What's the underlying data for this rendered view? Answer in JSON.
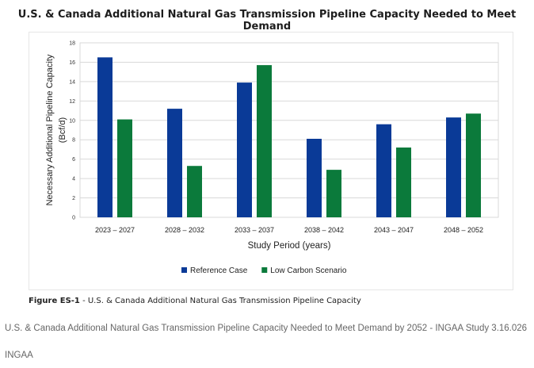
{
  "page": {
    "title": "U.S. & Canada Additional Natural Gas Transmission Pipeline Capacity Needed to Meet Demand",
    "figure_label": "Figure ES-1",
    "figure_caption": "U.S. & Canada Additional Natural Gas Transmission Pipeline Capacity",
    "source_description": "U.S. & Canada Additional Natural Gas Transmission Pipeline Capacity Needed to Meet Demand by 2052 - INGAA Study 3.16.026",
    "source_org": "INGAA"
  },
  "chart_data": {
    "type": "bar",
    "title": "U.S. & Canada Additional Natural Gas Transmission Pipeline Capacity Needed to Meet Demand",
    "xlabel": "Study Period (years)",
    "ylabel_line1": "Necessary Additional Pipeline Capacity",
    "ylabel_line2": "(Bcf/d)",
    "ylim": [
      0,
      18
    ],
    "yticks": [
      0,
      2,
      4,
      6,
      8,
      10,
      12,
      14,
      16,
      18
    ],
    "grid": true,
    "legend_position": "bottom",
    "categories": [
      "2023 – 2027",
      "2028 – 2032",
      "2033 – 2037",
      "2038 – 2042",
      "2043 – 2047",
      "2048 – 2052"
    ],
    "series": [
      {
        "name": "Reference Case",
        "color": "#0a3a97",
        "values": [
          16.5,
          11.2,
          13.9,
          8.1,
          9.6,
          10.3
        ]
      },
      {
        "name": "Low Carbon Scenario",
        "color": "#0b7a3b",
        "values": [
          10.1,
          5.3,
          15.7,
          4.9,
          7.2,
          10.7
        ]
      }
    ]
  }
}
